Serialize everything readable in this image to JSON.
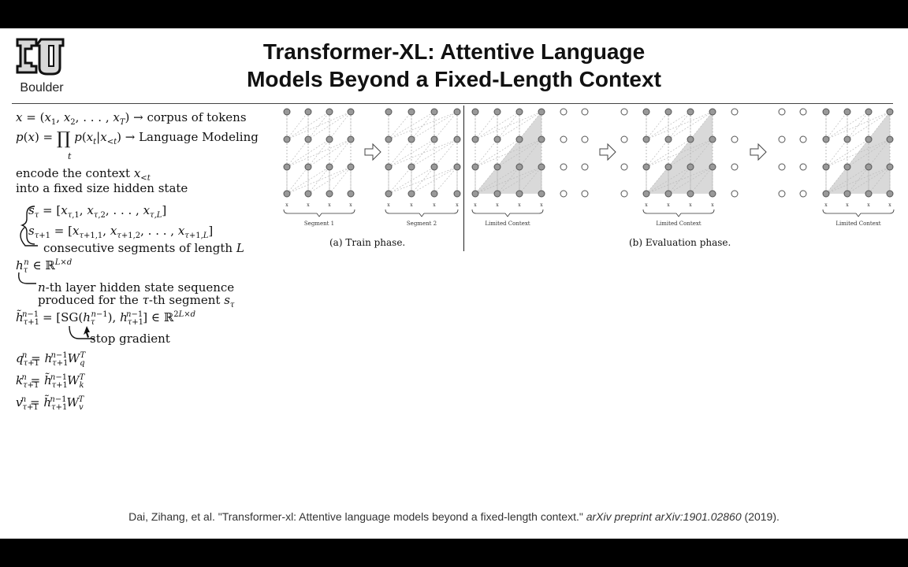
{
  "logo": {
    "text": "Boulder"
  },
  "title": {
    "line1": "Transformer-XL: Attentive Language",
    "line2": "Models Beyond a Fixed-Length Context"
  },
  "math": {
    "corpus_text": "corpus of tokens",
    "lm_text": "Language Modeling",
    "encode_line1": "encode the context",
    "encode_line2": "into a fixed size hidden state",
    "segments_text": "consecutive segments of length",
    "hidden_line1": "-th layer hidden state sequence",
    "hidden_line2": "produced for the",
    "hidden_line2b": "-th segment",
    "stop_gradient": "stop gradient"
  },
  "figure": {
    "segment1": "Segment 1",
    "segment2": "Segment 2",
    "limited_context": "Limited Context",
    "train_caption": "(a) Train phase.",
    "eval_caption": "(b) Evaluation phase."
  },
  "citation": {
    "authors": "Dai, Zihang, et al. \"Transformer-xl: Attentive language models beyond a fixed-length context.\"",
    "venue": "arXiv preprint arXiv:1901.02860",
    "year": "(2019)."
  }
}
